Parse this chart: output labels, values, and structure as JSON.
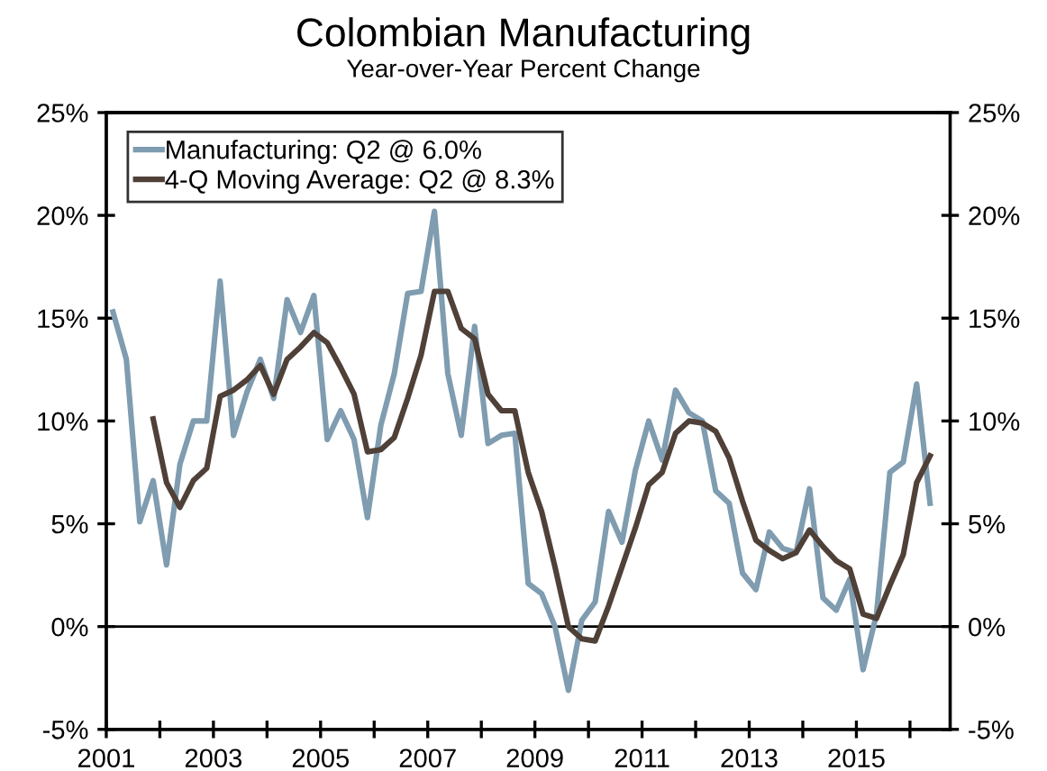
{
  "chart_data": {
    "type": "line",
    "title": "Colombian Manufacturing",
    "subtitle": "Year-over-Year Percent Change",
    "x": [
      2001.125,
      2001.375,
      2001.625,
      2001.875,
      2002.125,
      2002.375,
      2002.625,
      2002.875,
      2003.125,
      2003.375,
      2003.625,
      2003.875,
      2004.125,
      2004.375,
      2004.625,
      2004.875,
      2005.125,
      2005.375,
      2005.625,
      2005.875,
      2006.125,
      2006.375,
      2006.625,
      2006.875,
      2007.125,
      2007.375,
      2007.625,
      2007.875,
      2008.125,
      2008.375,
      2008.625,
      2008.875,
      2009.125,
      2009.375,
      2009.625,
      2009.875,
      2010.125,
      2010.375,
      2010.625,
      2010.875,
      2011.125,
      2011.375,
      2011.625,
      2011.875,
      2012.125,
      2012.375,
      2012.625,
      2012.875,
      2013.125,
      2013.375,
      2013.625,
      2013.875,
      2014.125,
      2014.375,
      2014.625,
      2014.875,
      2015.125,
      2015.375,
      2015.625,
      2015.875,
      2016.125,
      2016.375
    ],
    "series": [
      {
        "name": "Manufacturing: Q2 @ 6.0%",
        "color": "#7f9cb0",
        "values": [
          15.3,
          13.0,
          5.1,
          7.1,
          3.0,
          7.9,
          10.0,
          10.0,
          16.8,
          9.3,
          11.4,
          13.0,
          11.1,
          15.9,
          14.3,
          16.1,
          9.1,
          10.5,
          9.1,
          5.3,
          9.8,
          12.3,
          16.2,
          16.3,
          20.2,
          12.3,
          9.3,
          14.6,
          8.9,
          9.3,
          9.4,
          2.1,
          1.6,
          0.0,
          -3.1,
          0.3,
          1.2,
          5.6,
          4.1,
          7.6,
          10.0,
          8.1,
          11.5,
          10.4,
          10.0,
          6.6,
          6.0,
          2.6,
          1.8,
          4.6,
          3.8,
          3.6,
          6.7,
          1.4,
          0.8,
          2.3,
          -2.1,
          0.6,
          7.5,
          8.0,
          11.8,
          6.0
        ]
      },
      {
        "name": "4-Q Moving Average: Q2 @ 8.3%",
        "color": "#4f4038",
        "values": [
          null,
          null,
          null,
          10.1,
          7.0,
          5.8,
          7.1,
          7.7,
          11.2,
          11.5,
          12.0,
          12.7,
          11.3,
          13.0,
          13.6,
          14.3,
          13.8,
          12.6,
          11.3,
          8.5,
          8.6,
          9.2,
          11.1,
          13.2,
          16.3,
          16.3,
          14.5,
          14.0,
          11.3,
          10.5,
          10.5,
          7.5,
          5.6,
          2.9,
          0.0,
          -0.6,
          -0.7,
          1.0,
          2.9,
          4.8,
          6.9,
          7.5,
          9.4,
          10.0,
          9.9,
          9.5,
          8.2,
          6.1,
          4.2,
          3.7,
          3.3,
          3.6,
          4.7,
          3.9,
          3.2,
          2.8,
          0.6,
          0.4,
          2.0,
          3.5,
          7.0,
          8.3
        ]
      }
    ],
    "xlim": [
      2001,
      2016.75
    ],
    "xticks": [
      2001,
      {
        "value": 2002,
        "label": null
      },
      2003,
      {
        "value": 2004,
        "label": null
      },
      2005,
      {
        "value": 2006,
        "label": null
      },
      2007,
      {
        "value": 2008,
        "label": null
      },
      2009,
      {
        "value": 2010,
        "label": null
      },
      2011,
      {
        "value": 2012,
        "label": null
      },
      2013,
      {
        "value": 2014,
        "label": null
      },
      2015,
      {
        "value": 2016,
        "label": null
      }
    ],
    "ylim": [
      -5,
      25
    ],
    "yticks": [
      {
        "value": -5,
        "label": "-5%"
      },
      {
        "value": 0,
        "label": "0%"
      },
      {
        "value": 5,
        "label": "5%"
      },
      {
        "value": 10,
        "label": "10%"
      },
      {
        "value": 15,
        "label": "15%"
      },
      {
        "value": 20,
        "label": "20%"
      },
      {
        "value": 25,
        "label": "25%"
      }
    ],
    "y2lim": [
      -5,
      25
    ],
    "y2ticks": [
      {
        "value": -5,
        "label": "-5%"
      },
      {
        "value": 0,
        "label": "0%"
      },
      {
        "value": 5,
        "label": "5%"
      },
      {
        "value": 10,
        "label": "10%"
      },
      {
        "value": 15,
        "label": "15%"
      },
      {
        "value": 20,
        "label": "20%"
      },
      {
        "value": 25,
        "label": "25%"
      }
    ],
    "ref_lines": [
      {
        "axis": "y",
        "value": 0,
        "color": "#000000"
      }
    ],
    "grid": false,
    "legend": "top left",
    "line_style": "solid",
    "marker": "none"
  }
}
